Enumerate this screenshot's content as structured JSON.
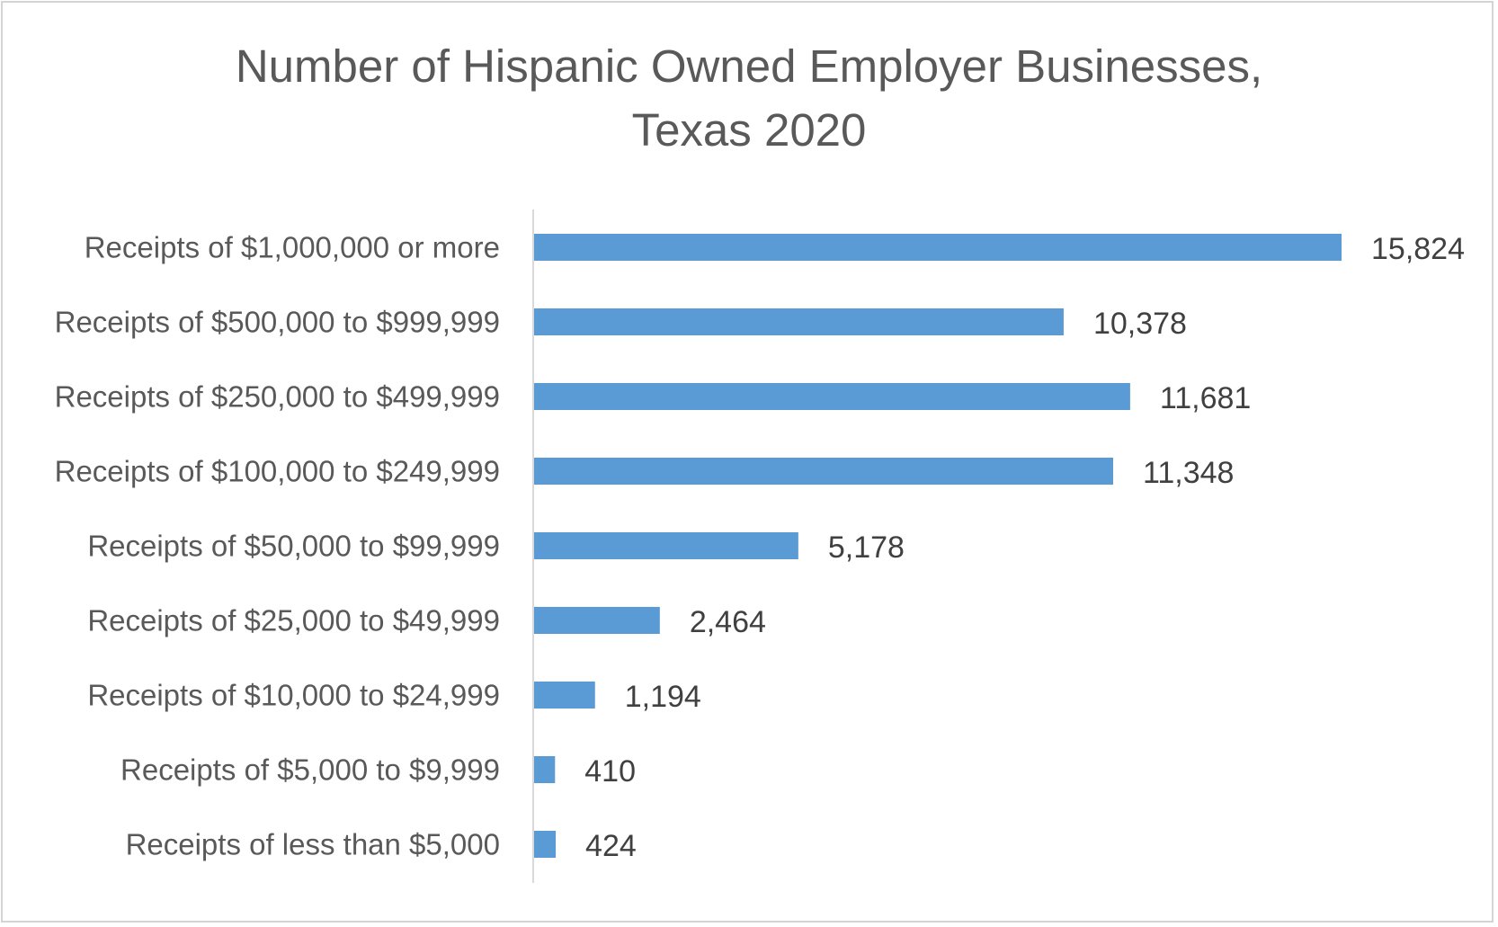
{
  "chart_data": {
    "type": "bar",
    "orientation": "horizontal",
    "title_lines": [
      "Number of Hispanic Owned Employer Businesses,",
      "Texas 2020"
    ],
    "categories": [
      "Receipts of $1,000,000 or more",
      "Receipts of $500,000 to $999,999",
      "Receipts of $250,000 to $499,999",
      "Receipts of $100,000 to $249,999",
      "Receipts of $50,000 to $99,999",
      "Receipts of $25,000 to $49,999",
      "Receipts of $10,000 to $24,999",
      "Receipts of $5,000 to $9,999",
      "Receipts of less than $5,000"
    ],
    "values": [
      15824,
      10378,
      11681,
      11348,
      5178,
      2464,
      1194,
      410,
      424
    ],
    "value_labels": [
      "15,824",
      "10,378",
      "11,681",
      "11,348",
      "5,178",
      "2,464",
      "1,194",
      "410",
      "424"
    ],
    "xlim": [
      0,
      18000
    ],
    "grid": false,
    "legend": "none",
    "bar_color": "#5b9bd5"
  }
}
